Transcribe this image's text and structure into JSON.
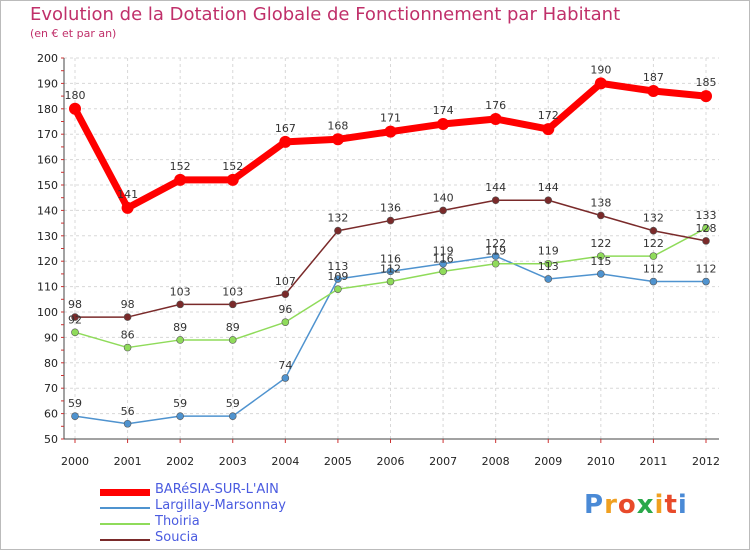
{
  "title": "Evolution de la Dotation Globale de Fonctionnement par Habitant",
  "subtitle": "(en € et par an)",
  "chart_data": {
    "type": "line",
    "title": "Evolution de la Dotation Globale de Fonctionnement par Habitant",
    "ylabel": "(en € et par an)",
    "xlabel": "",
    "ylim": [
      50,
      200
    ],
    "yticks": [
      50,
      60,
      70,
      80,
      90,
      100,
      110,
      120,
      130,
      140,
      150,
      160,
      170,
      180,
      190,
      200
    ],
    "x": [
      "2000",
      "2001",
      "2002",
      "2003",
      "2004",
      "2005",
      "2006",
      "2007",
      "2008",
      "2009",
      "2010",
      "2011",
      "2012"
    ],
    "grid": true,
    "series": [
      {
        "name": "BARéSIA-SUR-L'AIN",
        "color": "#ff0000",
        "values": [
          180,
          141,
          152,
          152,
          167,
          168,
          171,
          174,
          176,
          172,
          190,
          187,
          185
        ]
      },
      {
        "name": "Largillay-Marsonnay",
        "color": "#4f93cf",
        "values": [
          59,
          56,
          59,
          59,
          74,
          113,
          116,
          119,
          122,
          113,
          115,
          112,
          112
        ]
      },
      {
        "name": "Thoiria",
        "color": "#8fdb5a",
        "values": [
          92,
          86,
          89,
          89,
          96,
          109,
          112,
          116,
          119,
          119,
          122,
          122,
          133
        ]
      },
      {
        "name": "Soucia",
        "color": "#7a2a2a",
        "values": [
          98,
          98,
          103,
          103,
          107,
          132,
          136,
          140,
          144,
          144,
          138,
          132,
          128
        ]
      }
    ]
  },
  "logo": {
    "text": "Proxiti",
    "letters": [
      "P",
      "r",
      "o",
      "x",
      "i",
      "t",
      "i"
    ],
    "colors": [
      "#4a8ad6",
      "#f0a020",
      "#e84a2a",
      "#2aa84a",
      "#f0a020",
      "#e84a2a",
      "#4a8ad6"
    ]
  }
}
